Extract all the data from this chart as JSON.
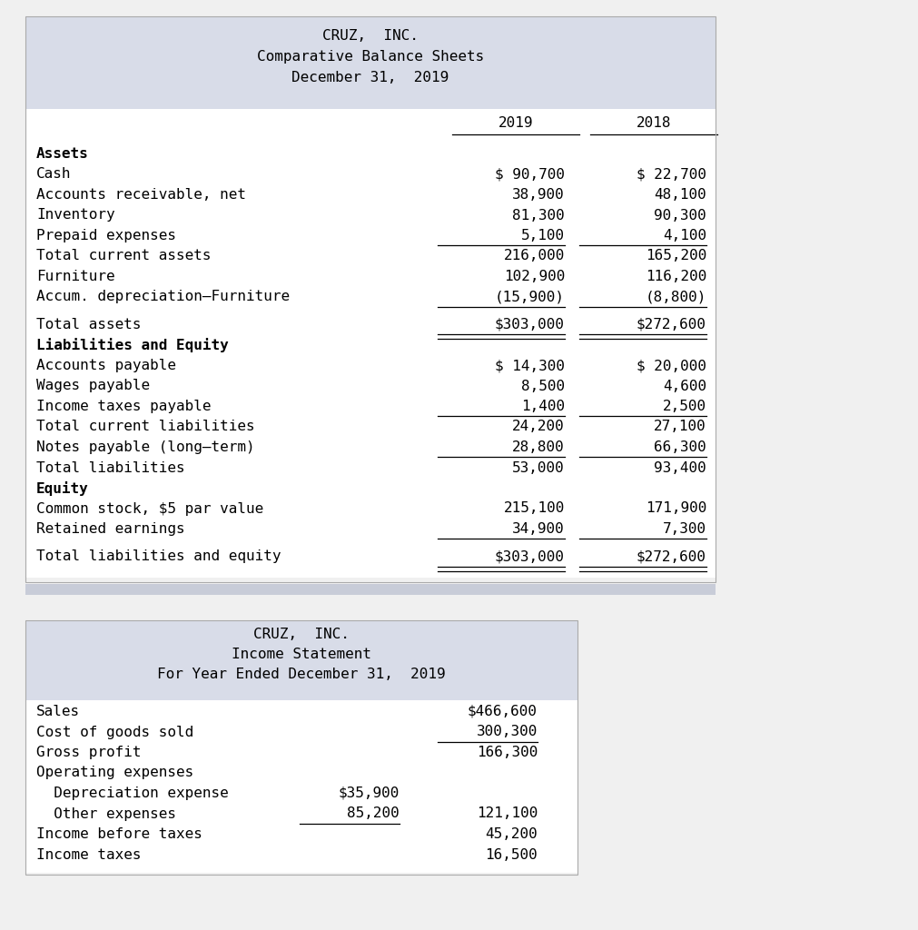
{
  "bg_color": "#f0f0f0",
  "table_bg": "#ffffff",
  "header_bg": "#d8dce8",
  "table1_header": [
    "CRUZ,  INC.",
    "Comparative Balance Sheets",
    "December 31,  2019"
  ],
  "balance_sheet_rows": [
    {
      "label": "Assets",
      "v2019": "",
      "v2018": "",
      "bold": true,
      "ul_below": false,
      "dbl_ul": false,
      "extra_above": false
    },
    {
      "label": "Cash",
      "v2019": "$ 90,700",
      "v2018": "$ 22,700",
      "bold": false,
      "ul_below": false,
      "dbl_ul": false,
      "extra_above": false
    },
    {
      "label": "Accounts receivable, net",
      "v2019": "38,900",
      "v2018": "48,100",
      "bold": false,
      "ul_below": false,
      "dbl_ul": false,
      "extra_above": false
    },
    {
      "label": "Inventory",
      "v2019": "81,300",
      "v2018": "90,300",
      "bold": false,
      "ul_below": false,
      "dbl_ul": false,
      "extra_above": false
    },
    {
      "label": "Prepaid expenses",
      "v2019": "5,100",
      "v2018": "4,100",
      "bold": false,
      "ul_below": true,
      "dbl_ul": false,
      "extra_above": false
    },
    {
      "label": "Total current assets",
      "v2019": "216,000",
      "v2018": "165,200",
      "bold": false,
      "ul_below": false,
      "dbl_ul": false,
      "extra_above": false
    },
    {
      "label": "Furniture",
      "v2019": "102,900",
      "v2018": "116,200",
      "bold": false,
      "ul_below": false,
      "dbl_ul": false,
      "extra_above": false
    },
    {
      "label": "Accum. depreciation—Furniture",
      "v2019": "(15,900)",
      "v2018": "(8,800)",
      "bold": false,
      "ul_below": true,
      "dbl_ul": false,
      "extra_above": false
    },
    {
      "label": "Total assets",
      "v2019": "$303,000",
      "v2018": "$272,600",
      "bold": false,
      "ul_below": false,
      "dbl_ul": true,
      "extra_above": true
    },
    {
      "label": "Liabilities and Equity",
      "v2019": "",
      "v2018": "",
      "bold": true,
      "ul_below": false,
      "dbl_ul": false,
      "extra_above": false
    },
    {
      "label": "Accounts payable",
      "v2019": "$ 14,300",
      "v2018": "$ 20,000",
      "bold": false,
      "ul_below": false,
      "dbl_ul": false,
      "extra_above": false
    },
    {
      "label": "Wages payable",
      "v2019": "8,500",
      "v2018": "4,600",
      "bold": false,
      "ul_below": false,
      "dbl_ul": false,
      "extra_above": false
    },
    {
      "label": "Income taxes payable",
      "v2019": "1,400",
      "v2018": "2,500",
      "bold": false,
      "ul_below": true,
      "dbl_ul": false,
      "extra_above": false
    },
    {
      "label": "Total current liabilities",
      "v2019": "24,200",
      "v2018": "27,100",
      "bold": false,
      "ul_below": false,
      "dbl_ul": false,
      "extra_above": false
    },
    {
      "label": "Notes payable (long–term)",
      "v2019": "28,800",
      "v2018": "66,300",
      "bold": false,
      "ul_below": true,
      "dbl_ul": false,
      "extra_above": false
    },
    {
      "label": "Total liabilities",
      "v2019": "53,000",
      "v2018": "93,400",
      "bold": false,
      "ul_below": false,
      "dbl_ul": false,
      "extra_above": false
    },
    {
      "label": "Equity",
      "v2019": "",
      "v2018": "",
      "bold": true,
      "ul_below": false,
      "dbl_ul": false,
      "extra_above": false
    },
    {
      "label": "Common stock, $5 par value",
      "v2019": "215,100",
      "v2018": "171,900",
      "bold": false,
      "ul_below": false,
      "dbl_ul": false,
      "extra_above": false
    },
    {
      "label": "Retained earnings",
      "v2019": "34,900",
      "v2018": "7,300",
      "bold": false,
      "ul_below": true,
      "dbl_ul": false,
      "extra_above": false
    },
    {
      "label": "Total liabilities and equity",
      "v2019": "$303,000",
      "v2018": "$272,600",
      "bold": false,
      "ul_below": false,
      "dbl_ul": true,
      "extra_above": true
    }
  ],
  "table2_header": [
    "CRUZ,  INC.",
    "Income Statement",
    "For Year Ended December 31,  2019"
  ],
  "income_rows": [
    {
      "label": "Sales",
      "col1": "",
      "col2": "$466,600",
      "ul_col1": false,
      "ul_col2": false,
      "extra_above": false
    },
    {
      "label": "Cost of goods sold",
      "col1": "",
      "col2": "300,300",
      "ul_col1": false,
      "ul_col2": true,
      "extra_above": false
    },
    {
      "label": "Gross profit",
      "col1": "",
      "col2": "166,300",
      "ul_col1": false,
      "ul_col2": false,
      "extra_above": false
    },
    {
      "label": "Operating expenses",
      "col1": "",
      "col2": "",
      "ul_col1": false,
      "ul_col2": false,
      "extra_above": false
    },
    {
      "label": "  Depreciation expense",
      "col1": "$35,900",
      "col2": "",
      "ul_col1": false,
      "ul_col2": false,
      "extra_above": false
    },
    {
      "label": "  Other expenses",
      "col1": "85,200",
      "col2": "121,100",
      "ul_col1": true,
      "ul_col2": false,
      "extra_above": false
    },
    {
      "label": "Income before taxes",
      "col1": "",
      "col2": "45,200",
      "ul_col1": false,
      "ul_col2": false,
      "extra_above": false
    },
    {
      "label": "Income taxes",
      "col1": "",
      "col2": "16,500",
      "ul_col1": false,
      "ul_col2": false,
      "extra_above": false
    }
  ],
  "font_size": 11.5,
  "mono_font": "DejaVu Sans Mono"
}
